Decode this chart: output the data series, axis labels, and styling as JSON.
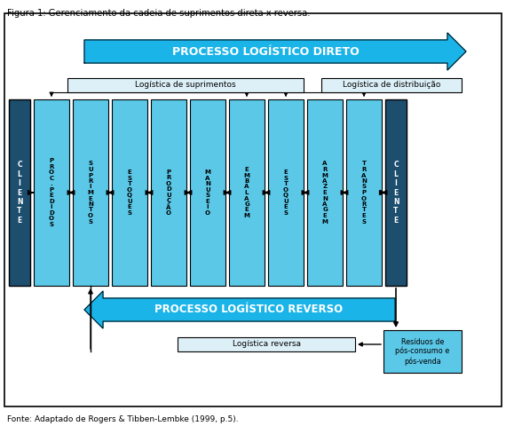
{
  "title": "Figura 1: Gerenciamento da cadeia de suprimentos direta x reversa.",
  "footer": "Fonte: Adaptado de Rogers & Tibben-Lembke (1999, p.5).",
  "bg_color": "#ffffff",
  "light_blue": "#5bc8e8",
  "dark_blue": "#1d4e6e",
  "arrow_blue": "#1ab4e8",
  "columns": [
    "P\nR\nO\nC\n.\nP\nE\nD\nI\nD\nO\nS",
    "S\nU\nP\nR\nI\nM\nE\nN\nT\nO\nS",
    "E\nS\nT\nO\nQ\nU\nE\nS",
    "P\nR\nO\nD\nU\nÇ\nÃ\nO",
    "M\nA\nN\nU\nS\nE\nI\nO",
    "E\nM\nB\nA\nL\nA\nG\nE\nM",
    "E\nS\nT\nO\nQ\nU\nE\nS",
    "A\nR\nM\nA\nZ\nE\nN\nA\nG\nE\nM",
    "T\nR\nA\nN\nS\nP\nO\nR\nT\nE\nS"
  ],
  "cliente_left": "C\nL\nI\nE\nN\nT\nE",
  "cliente_right": "C\nL\nI\nE\nN\nT\nE",
  "direct_arrow_text": "PROCESSO LOGÍSTICO DIRETO",
  "reverse_arrow_text": "PROCESSO LOGÍSTICO REVERSO",
  "log_suprimentos": "Logística de suprimentos",
  "log_distribuicao": "Logística de distribuição",
  "log_reversa": "Logística reversa",
  "residuos": "Resíduos de\npós-consumo e\npós-venda"
}
